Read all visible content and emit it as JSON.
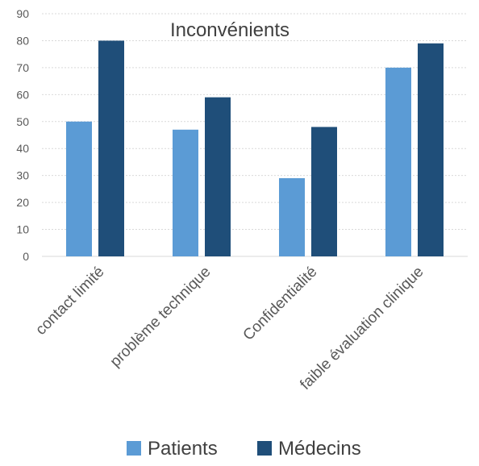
{
  "chart_data": {
    "type": "bar",
    "title": "Inconvénients",
    "categories": [
      "contact limité",
      "problème technique",
      "Confidentialité",
      "faible évaluation clinique"
    ],
    "series": [
      {
        "name": "Patients",
        "color": "#5B9BD5",
        "values": [
          50,
          47,
          29,
          70
        ]
      },
      {
        "name": "Médecins",
        "color": "#1F4E79",
        "values": [
          80,
          59,
          48,
          79
        ]
      }
    ],
    "ylim": [
      0,
      90
    ],
    "yticks": [
      0,
      10,
      20,
      30,
      40,
      50,
      60,
      70,
      80,
      90
    ],
    "grid": true,
    "legend_position": "bottom",
    "xlabel": "",
    "ylabel": ""
  }
}
